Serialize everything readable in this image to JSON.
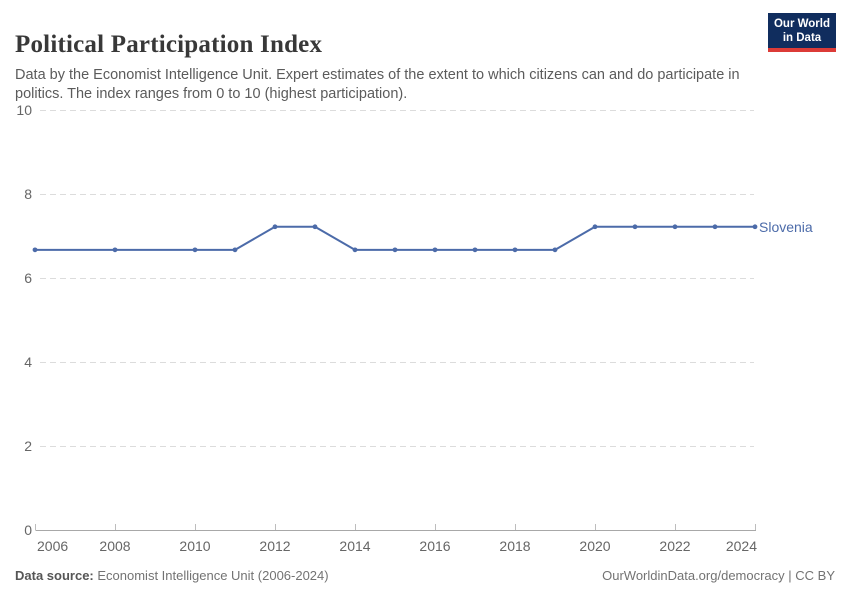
{
  "header": {
    "title": "Political Participation Index",
    "subtitle": "Data by the Economist Intelligence Unit. Expert estimates of the extent to which citizens can and do participate in politics. The index ranges from 0 to 10 (highest participation).",
    "logo": {
      "line1": "Our World",
      "line2": "in Data"
    }
  },
  "footer": {
    "source_label": "Data source:",
    "source_text": " Economist Intelligence Unit (2006-2024)",
    "credit": "OurWorldinData.org/democracy | CC BY"
  },
  "chart_data": {
    "type": "line",
    "title": "Political Participation Index",
    "xlabel": "",
    "ylabel": "",
    "xlim": [
      2006,
      2024
    ],
    "ylim": [
      0,
      10
    ],
    "x_ticks": [
      2006,
      2008,
      2010,
      2012,
      2014,
      2016,
      2018,
      2020,
      2022,
      2024
    ],
    "y_ticks": [
      0,
      2,
      4,
      6,
      8,
      10
    ],
    "grid": "horizontal-dashed",
    "legend_position": "end-of-line-label",
    "series": [
      {
        "name": "Slovenia",
        "color": "#4c6ba9",
        "x": [
          2006,
          2008,
          2010,
          2011,
          2012,
          2013,
          2014,
          2015,
          2016,
          2017,
          2018,
          2019,
          2020,
          2021,
          2022,
          2023,
          2024
        ],
        "values": [
          6.67,
          6.67,
          6.67,
          6.67,
          7.22,
          7.22,
          6.67,
          6.67,
          6.67,
          6.67,
          6.67,
          6.67,
          7.22,
          7.22,
          7.22,
          7.22,
          7.22
        ]
      }
    ]
  },
  "colors": {
    "line": "#4c6ba9",
    "gridline": "#dcdcdc",
    "axis": "#a8a8a8",
    "tick": "#bdbdbd",
    "axis_text": "#666666",
    "logo_bg": "#102d5e",
    "logo_underline": "#dc3b37"
  }
}
